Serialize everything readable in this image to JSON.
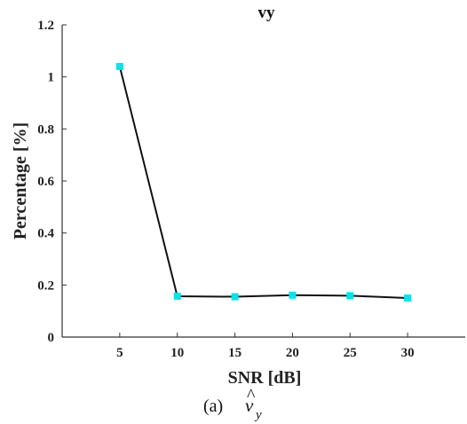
{
  "chart_data": {
    "type": "line",
    "title": "vy",
    "xlabel": "SNR [dB]",
    "ylabel": "Percentage [%]",
    "x": [
      5,
      10,
      15,
      20,
      25,
      30
    ],
    "series": [
      {
        "values": [
          1.04,
          0.157,
          0.155,
          0.161,
          0.159,
          0.15
        ]
      }
    ],
    "xlim": [
      0,
      35
    ],
    "ylim": [
      0,
      1.2
    ],
    "xticks": [
      "5",
      "10",
      "15",
      "20",
      "25",
      "30"
    ],
    "yticks": [
      "0",
      "0.2",
      "0.4",
      "0.6",
      "0.8",
      "1",
      "1.2"
    ],
    "grid": false,
    "colors": {
      "line": "#111111",
      "marker": "#00e5ee",
      "axis": "#333333"
    }
  },
  "caption": {
    "prefix": "(a)",
    "symbol": "v",
    "hat": "^",
    "subscript": "y"
  }
}
